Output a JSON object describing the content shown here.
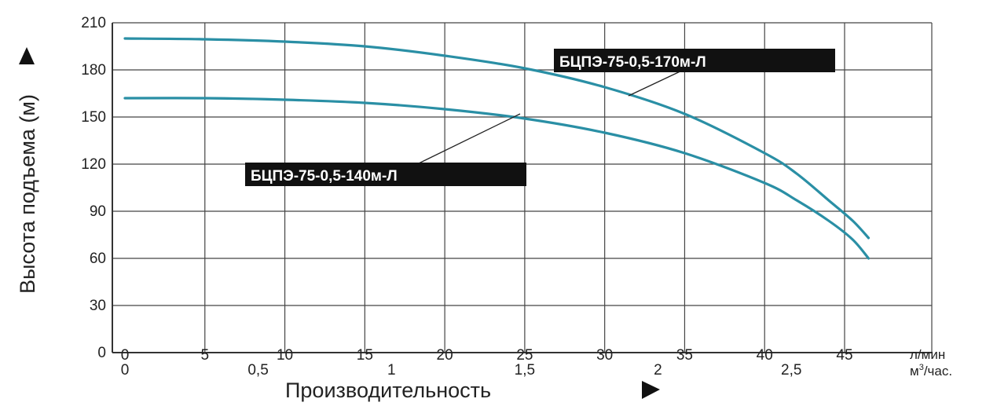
{
  "chart_data": {
    "type": "line",
    "xlabel": "Производительность",
    "ylabel": "Высота подъема (м)",
    "x_unit_primary": "л/мин",
    "x_unit_secondary_base": "м",
    "x_unit_secondary_sup": "3",
    "x_unit_secondary_tail": "/час.",
    "xlim": [
      0,
      50
    ],
    "ylim": [
      0,
      210
    ],
    "y_ticks": [
      0,
      30,
      60,
      90,
      120,
      150,
      180,
      210
    ],
    "x_ticks_primary": [
      0,
      5,
      10,
      15,
      20,
      25,
      30,
      35,
      40,
      45
    ],
    "x_ticks_secondary": [
      {
        "label": "0",
        "x": 0
      },
      {
        "label": "0,5",
        "x": 8.33
      },
      {
        "label": "1",
        "x": 16.67
      },
      {
        "label": "1,5",
        "x": 25
      },
      {
        "label": "2",
        "x": 33.33
      },
      {
        "label": "2,5",
        "x": 41.67
      }
    ],
    "grid": true,
    "series": [
      {
        "name": "БЦПЭ-75-0,5-170м-Л",
        "color": "#2a8fa5",
        "x": [
          0,
          5,
          10,
          15,
          20,
          25,
          30,
          35,
          40,
          42,
          44,
          45.5,
          46.5
        ],
        "y": [
          200,
          199.5,
          198,
          195,
          189,
          181,
          169,
          152,
          127,
          114,
          97,
          84,
          73
        ]
      },
      {
        "name": "БЦПЭ-75-0,5-140м-Л",
        "color": "#2a8fa5",
        "x": [
          0,
          5,
          10,
          15,
          20,
          25,
          30,
          35,
          40,
          42,
          44,
          45.5,
          46.5
        ],
        "y": [
          162,
          162,
          161,
          159,
          155,
          149,
          140,
          127,
          108,
          97,
          84,
          72,
          60
        ]
      }
    ]
  }
}
